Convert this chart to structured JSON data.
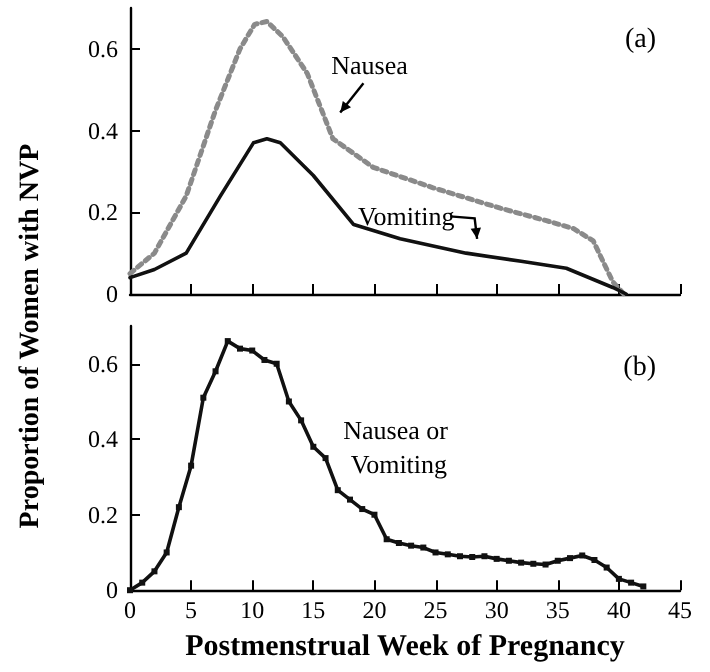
{
  "chart_data": [
    {
      "type": "line",
      "title": "(a)",
      "ylabel": "Proportion of Women with NVP",
      "xlim": [
        0,
        45
      ],
      "xticks": [
        0,
        5,
        10,
        15,
        20,
        25,
        30,
        35,
        40,
        45
      ],
      "ylim": [
        0,
        0.7
      ],
      "yticks": [
        0,
        0.2,
        0.4,
        0.6
      ],
      "tick_labels": "y",
      "grid": false,
      "legend": false,
      "marker": "none",
      "series": [
        {
          "name": "Nausea",
          "color": "#8a8a8a",
          "line_style": "dotted",
          "x": [
            0,
            2,
            4.6,
            7,
            9,
            10.2,
            11.2,
            12.5,
            14.5,
            16.6,
            19.9,
            24.8,
            30.3,
            34,
            36.3,
            37.9,
            39.5,
            40.4
          ],
          "values": [
            0.05,
            0.1,
            0.24,
            0.45,
            0.6,
            0.66,
            0.667,
            0.63,
            0.54,
            0.38,
            0.31,
            0.26,
            0.21,
            0.18,
            0.16,
            0.13,
            0.03,
            0
          ]
        },
        {
          "name": "Vomiting",
          "color": "#111111",
          "line_style": "solid",
          "x": [
            0,
            2,
            4.6,
            7.4,
            10.1,
            11.2,
            12.3,
            15,
            18.3,
            22.1,
            27.5,
            32,
            35.7,
            39.5,
            40.6
          ],
          "values": [
            0.04,
            0.06,
            0.1,
            0.24,
            0.37,
            0.38,
            0.37,
            0.29,
            0.17,
            0.135,
            0.1,
            0.08,
            0.063,
            0.016,
            0
          ]
        }
      ]
    },
    {
      "type": "line",
      "title": "(b)",
      "xlabel": "Postmenstrual Week of Pregnancy",
      "xlim": [
        0,
        45
      ],
      "xticks": [
        0,
        5,
        10,
        15,
        20,
        25,
        30,
        35,
        40,
        45
      ],
      "ylim": [
        0,
        0.7
      ],
      "yticks": [
        0,
        0.2,
        0.4,
        0.6
      ],
      "grid": false,
      "legend": false,
      "marker": "square",
      "series": [
        {
          "name": "Nausea or Vomiting",
          "color": "#111111",
          "line_style": "solid",
          "x": [
            0,
            1,
            2,
            3,
            4,
            5,
            6,
            7,
            8,
            9,
            10,
            11,
            12,
            13,
            14,
            15,
            16,
            17,
            18,
            19,
            20,
            21,
            22,
            23,
            24,
            25,
            26,
            27,
            28,
            29,
            30,
            31,
            32,
            33,
            34,
            35,
            36,
            37,
            38,
            39,
            40,
            41,
            42
          ],
          "values": [
            0,
            0.02,
            0.05,
            0.1,
            0.22,
            0.33,
            0.51,
            0.58,
            0.66,
            0.64,
            0.635,
            0.61,
            0.6,
            0.5,
            0.45,
            0.38,
            0.35,
            0.265,
            0.24,
            0.215,
            0.2,
            0.135,
            0.125,
            0.118,
            0.113,
            0.1,
            0.095,
            0.09,
            0.088,
            0.09,
            0.083,
            0.078,
            0.073,
            0.07,
            0.068,
            0.078,
            0.085,
            0.092,
            0.08,
            0.06,
            0.03,
            0.02,
            0.01
          ]
        }
      ]
    }
  ]
}
